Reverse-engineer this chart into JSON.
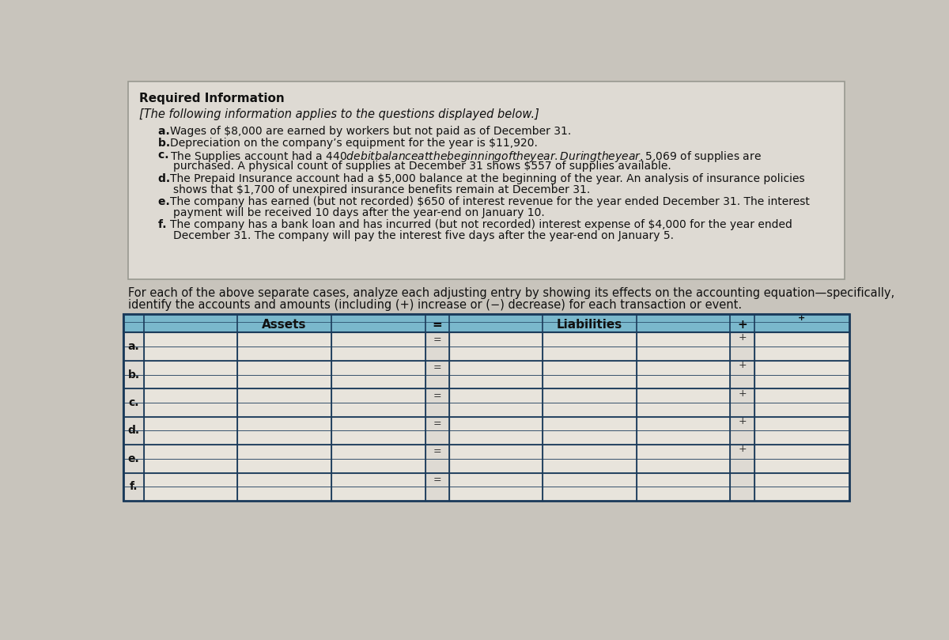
{
  "bg_color": "#c8c4bc",
  "text_box_bg": "#dedad3",
  "text_box_border": "#999990",
  "header_bg": "#7ab8cc",
  "table_cell_bg": "#dedad3",
  "table_white_bg": "#e8e4dc",
  "table_border_color": "#1a3a5a",
  "required_info_text": "Required Information",
  "italic_line": "[The following information applies to the questions displayed below.]",
  "line_a": "a. Wages of $8,000 are earned by workers but not paid as of December 31.",
  "line_b": "b. Depreciation on the company’s equipment for the year is $11,920.",
  "line_c1": "c. The Supplies account had a $440 debit balance at the beginning of the year. During the year, $5,069 of supplies are",
  "line_c2": "    purchased. A physical count of supplies at December 31 shows $557 of supplies available.",
  "line_d1": "d. The Prepaid Insurance account had a $5,000 balance at the beginning of the year. An analysis of insurance policies",
  "line_d2": "    shows that $1,700 of unexpired insurance benefits remain at December 31.",
  "line_e1": "e. The company has earned (but not recorded) $650 of interest revenue for the year ended December 31. The interest",
  "line_e2": "    payment will be received 10 days after the year-end on January 10.",
  "line_f1": "f. The company has a bank loan and has incurred (but not recorded) interest expense of $4,000 for the year ended",
  "line_f2": "    December 31. The company will pay the interest five days after the year-end on January 5.",
  "instr1": "For each of the above separate cases, analyze each adjusting entry by showing its effects on the accounting equation—specifically,",
  "instr2": "identify the accounts and amounts (including (+) increase or (−) decrease) for each transaction or event.",
  "assets_label": "Assets",
  "liabilities_label": "Liabilities",
  "row_labels": [
    "a.",
    "b.",
    "c.",
    "d.",
    "e.",
    "f."
  ],
  "header_plus": "+",
  "text_color": "#111111",
  "label_bold_prefix": [
    "a. ",
    "b. ",
    "c. ",
    "d. ",
    "e. ",
    "f. "
  ]
}
